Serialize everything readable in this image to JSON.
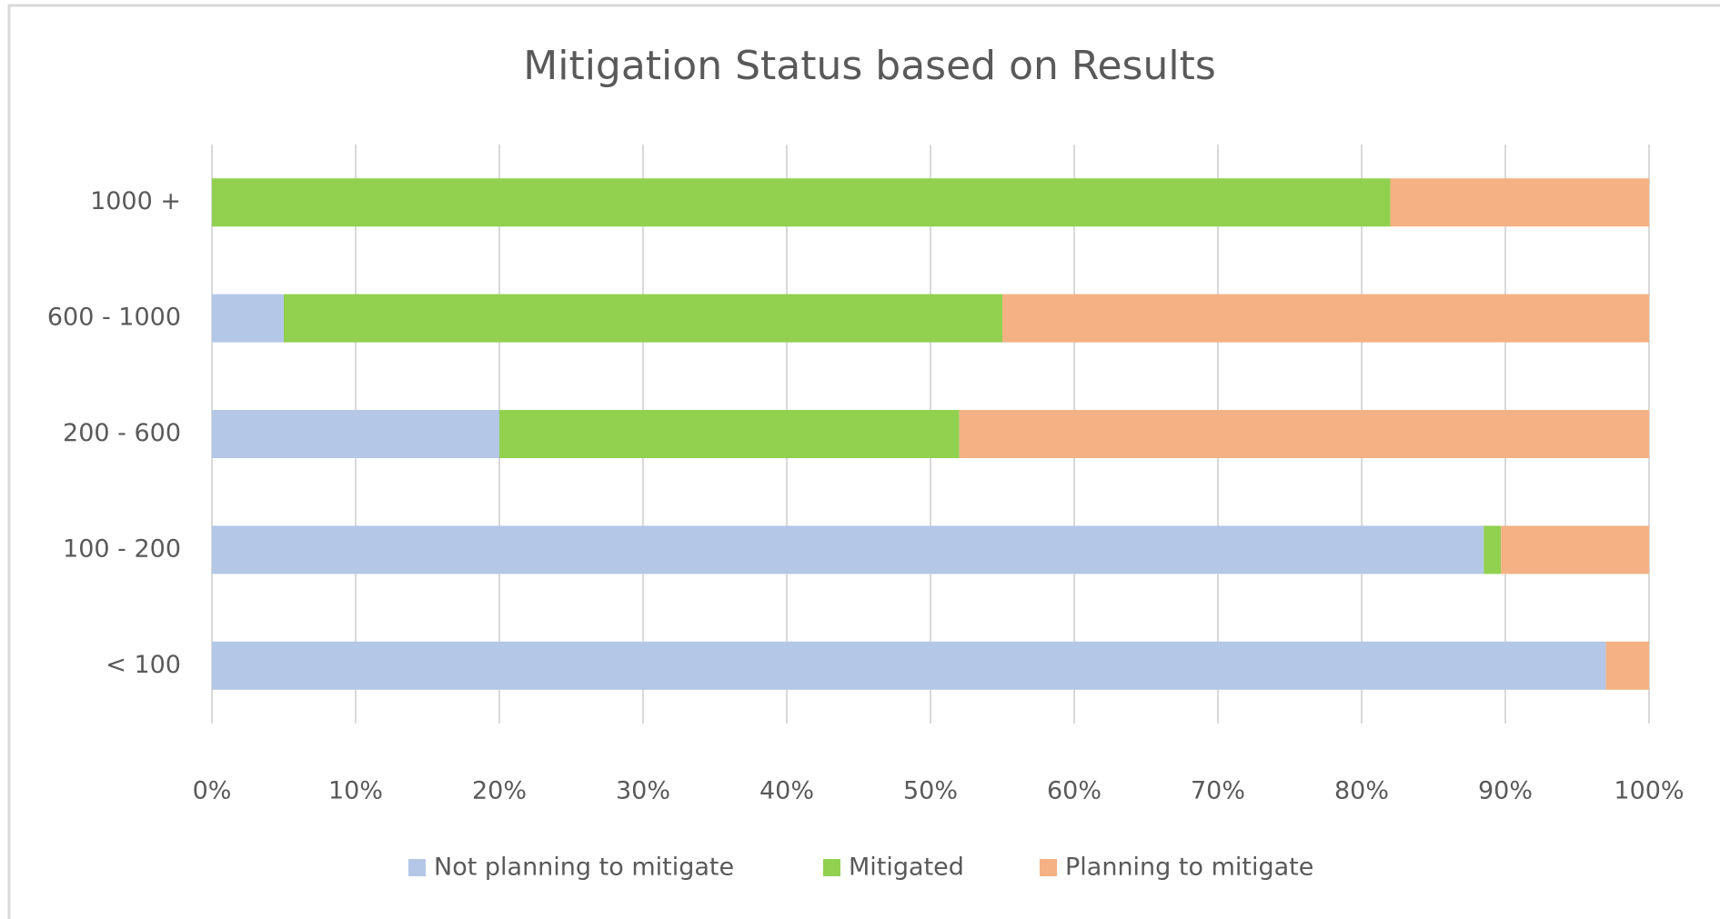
{
  "chart_data": {
    "type": "stacked_barh",
    "title": "Mitigation Status based on Results",
    "categories": [
      "1000 +",
      "600 - 1000",
      "200 - 600",
      "100 - 200",
      "< 100"
    ],
    "series": [
      {
        "name": "Not planning to mitigate",
        "color": "#b4c7e7",
        "values": [
          0,
          5,
          20,
          88.5,
          97
        ]
      },
      {
        "name": "Mitigated",
        "color": "#92d050",
        "values": [
          82,
          50,
          32,
          1.2,
          0
        ]
      },
      {
        "name": "Planning to mitigate",
        "color": "#f4b183",
        "values": [
          18,
          45,
          48,
          10.3,
          3
        ]
      }
    ],
    "xlim": [
      0,
      100
    ],
    "xticks": [
      {
        "value": 0,
        "label": "0%"
      },
      {
        "value": 10,
        "label": "10%"
      },
      {
        "value": 20,
        "label": "20%"
      },
      {
        "value": 30,
        "label": "30%"
      },
      {
        "value": 40,
        "label": "40%"
      },
      {
        "value": 50,
        "label": "50%"
      },
      {
        "value": 60,
        "label": "60%"
      },
      {
        "value": 70,
        "label": "70%"
      },
      {
        "value": 80,
        "label": "80%"
      },
      {
        "value": 90,
        "label": "90%"
      },
      {
        "value": 100,
        "label": "100%"
      }
    ],
    "grid": true,
    "legend": "bottom"
  }
}
